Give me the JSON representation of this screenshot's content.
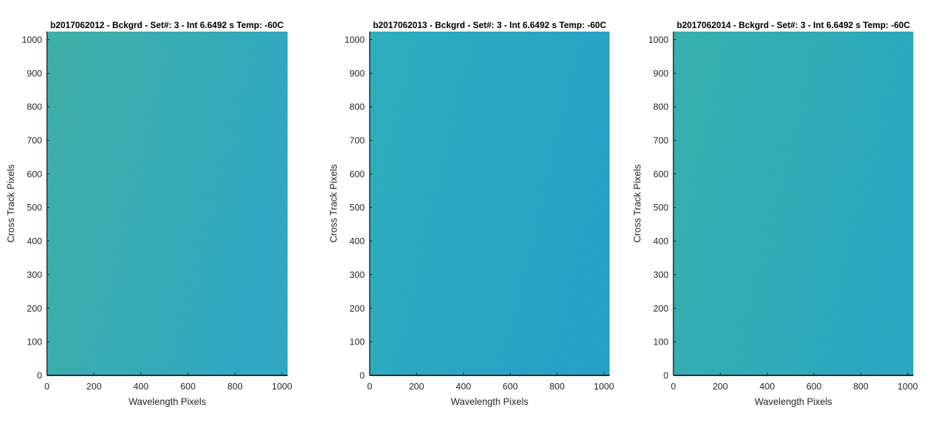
{
  "chart_data": [
    {
      "type": "heatmap",
      "title": "b2017062012 - Bckgrd - Set#: 3 - Int 6.6492 s Temp: -60C",
      "xlabel": "Wavelength Pixels",
      "ylabel": "Cross Track Pixels",
      "xlim": [
        0,
        1024
      ],
      "ylim": [
        0,
        1024
      ],
      "xticks": [
        0,
        200,
        400,
        600,
        800,
        1000
      ],
      "yticks": [
        0,
        100,
        200,
        300,
        400,
        500,
        600,
        700,
        800,
        900,
        1000
      ],
      "grid": false,
      "colormap": "parula",
      "color_left": "#2aa8a8",
      "color_right": "#1b9fc8",
      "noise": "fine speckle"
    },
    {
      "type": "heatmap",
      "title": "b2017062013 - Bckgrd - Set#: 3 - Int 6.6492 s Temp: -60C",
      "xlabel": "Wavelength Pixels",
      "ylabel": "Cross Track Pixels",
      "xlim": [
        0,
        1024
      ],
      "ylim": [
        0,
        1024
      ],
      "xticks": [
        0,
        200,
        400,
        600,
        800,
        1000
      ],
      "yticks": [
        0,
        100,
        200,
        300,
        400,
        500,
        600,
        700,
        800,
        900,
        1000
      ],
      "grid": false,
      "colormap": "parula",
      "color_left": "#1aa6c2",
      "color_right": "#1298cc",
      "noise": "fine speckle"
    },
    {
      "type": "heatmap",
      "title": "b2017062014 - Bckgrd - Set#: 3 - Int 6.6492 s Temp: -60C",
      "xlabel": "Wavelength Pixels",
      "ylabel": "Cross Track Pixels",
      "xlim": [
        0,
        1024
      ],
      "ylim": [
        0,
        1024
      ],
      "xticks": [
        0,
        200,
        400,
        600,
        800,
        1000
      ],
      "yticks": [
        0,
        100,
        200,
        300,
        400,
        500,
        600,
        700,
        800,
        900,
        1000
      ],
      "grid": false,
      "colormap": "parula",
      "color_left": "#22a8b0",
      "color_right": "#179fc6",
      "noise": "fine speckle"
    }
  ]
}
